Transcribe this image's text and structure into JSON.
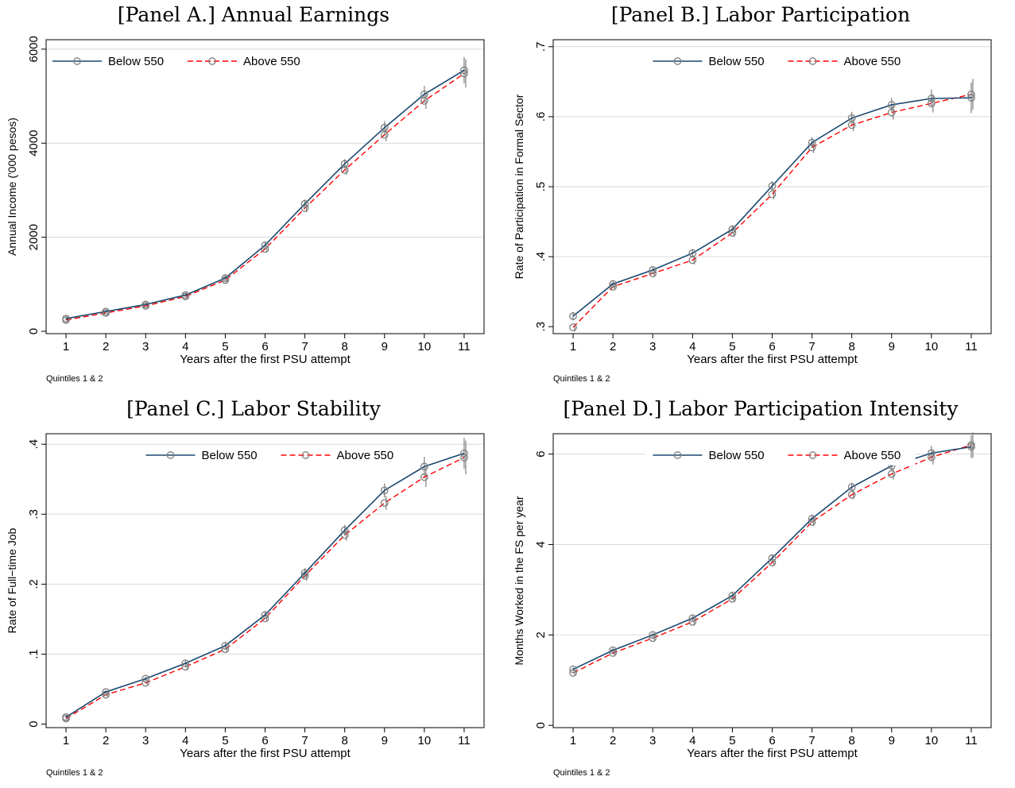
{
  "colors": {
    "below": "#1a476f",
    "above": "#ff0000",
    "marker": "#7f7f7f",
    "grid": "#dadada"
  },
  "legend": {
    "below": "Below 550",
    "above": "Above 550"
  },
  "chart_data": [
    {
      "type": "line",
      "title": "[Panel A.] Annual Earnings",
      "xlabel": "Years after the first PSU attempt",
      "ylabel": "Annual Income ('000 pesos)",
      "note": "Quintiles 1 & 2",
      "x": [
        1,
        2,
        3,
        4,
        5,
        6,
        7,
        8,
        9,
        10,
        11
      ],
      "ylim": [
        -50,
        6200
      ],
      "yticks": [
        0,
        2000,
        4000,
        6000
      ],
      "ytick_labels": [
        "0",
        "2000",
        "4000",
        "6000"
      ],
      "legend_position": "top-left",
      "series": [
        {
          "name": "Below 550",
          "values": [
            270,
            420,
            570,
            770,
            1130,
            1830,
            2710,
            3560,
            4330,
            5040,
            5550
          ],
          "ci": [
            40,
            40,
            40,
            50,
            60,
            80,
            90,
            100,
            140,
            180,
            280
          ]
        },
        {
          "name": "Above 550",
          "values": [
            240,
            390,
            540,
            740,
            1090,
            1750,
            2620,
            3430,
            4180,
            4900,
            5480
          ],
          "ci": [
            40,
            40,
            40,
            50,
            60,
            70,
            90,
            100,
            140,
            170,
            300
          ]
        }
      ]
    },
    {
      "type": "line",
      "title": "[Panel B.] Labor Participation",
      "xlabel": "Years after the first PSU attempt",
      "ylabel": "Rate of Participation in Formal Sector",
      "note": "Quintiles 1 & 2",
      "x": [
        1,
        2,
        3,
        4,
        5,
        6,
        7,
        8,
        9,
        10,
        11
      ],
      "ylim": [
        0.29,
        0.71
      ],
      "yticks": [
        0.3,
        0.4,
        0.5,
        0.6,
        0.7
      ],
      "ytick_labels": [
        ".3",
        ".4",
        ".5",
        ".6",
        ".7"
      ],
      "legend_position": "top-center",
      "series": [
        {
          "name": "Below 550",
          "values": [
            0.315,
            0.361,
            0.381,
            0.405,
            0.439,
            0.501,
            0.563,
            0.598,
            0.617,
            0.626,
            0.627
          ],
          "ci": [
            0.006,
            0.005,
            0.005,
            0.006,
            0.006,
            0.007,
            0.008,
            0.009,
            0.01,
            0.013,
            0.022
          ]
        },
        {
          "name": "Above 550",
          "values": [
            0.299,
            0.357,
            0.376,
            0.395,
            0.434,
            0.489,
            0.556,
            0.588,
            0.606,
            0.619,
            0.632
          ],
          "ci": [
            0.006,
            0.005,
            0.005,
            0.006,
            0.006,
            0.007,
            0.008,
            0.009,
            0.01,
            0.013,
            0.022
          ]
        }
      ]
    },
    {
      "type": "line",
      "title": "[Panel C.] Labor Stability",
      "xlabel": "Years after the first PSU attempt",
      "ylabel": "Rate of Full−time Job",
      "note": "Quintiles 1 & 2",
      "x": [
        1,
        2,
        3,
        4,
        5,
        6,
        7,
        8,
        9,
        10,
        11
      ],
      "ylim": [
        -0.005,
        0.415
      ],
      "yticks": [
        0,
        0.1,
        0.2,
        0.3,
        0.4
      ],
      "ytick_labels": [
        "0",
        ".1",
        ".2",
        ".3",
        ".4"
      ],
      "legend_position": "top-center",
      "series": [
        {
          "name": "Below 550",
          "values": [
            0.01,
            0.046,
            0.065,
            0.087,
            0.112,
            0.156,
            0.216,
            0.277,
            0.334,
            0.368,
            0.387
          ],
          "ci": [
            0.003,
            0.003,
            0.003,
            0.004,
            0.004,
            0.005,
            0.007,
            0.008,
            0.01,
            0.014,
            0.022
          ]
        },
        {
          "name": "Above 550",
          "values": [
            0.008,
            0.042,
            0.059,
            0.082,
            0.107,
            0.151,
            0.212,
            0.27,
            0.316,
            0.353,
            0.381
          ],
          "ci": [
            0.003,
            0.003,
            0.003,
            0.004,
            0.004,
            0.005,
            0.007,
            0.008,
            0.01,
            0.014,
            0.024
          ]
        }
      ]
    },
    {
      "type": "line",
      "title": "[Panel D.] Labor Participation Intensity",
      "xlabel": "Years after the first PSU attempt",
      "ylabel": "Months Worked in the FS per year",
      "note": "Quintiles 1 & 2",
      "x": [
        1,
        2,
        3,
        4,
        5,
        6,
        7,
        8,
        9,
        10,
        11
      ],
      "ylim": [
        -0.05,
        6.45
      ],
      "yticks": [
        0,
        2,
        4,
        6
      ],
      "ytick_labels": [
        "0",
        "2",
        "4",
        "6"
      ],
      "legend_position": "top-center",
      "series": [
        {
          "name": "Below 550",
          "values": [
            1.24,
            1.66,
            2.0,
            2.37,
            2.87,
            3.7,
            4.57,
            5.27,
            5.74,
            6.02,
            6.16
          ],
          "ci": [
            0.05,
            0.05,
            0.05,
            0.06,
            0.06,
            0.08,
            0.09,
            0.1,
            0.12,
            0.16,
            0.25
          ]
        },
        {
          "name": "Above 550",
          "values": [
            1.16,
            1.6,
            1.93,
            2.29,
            2.8,
            3.6,
            4.5,
            5.1,
            5.56,
            5.93,
            6.2
          ],
          "ci": [
            0.05,
            0.05,
            0.05,
            0.06,
            0.06,
            0.08,
            0.09,
            0.1,
            0.12,
            0.16,
            0.28
          ]
        }
      ]
    }
  ]
}
